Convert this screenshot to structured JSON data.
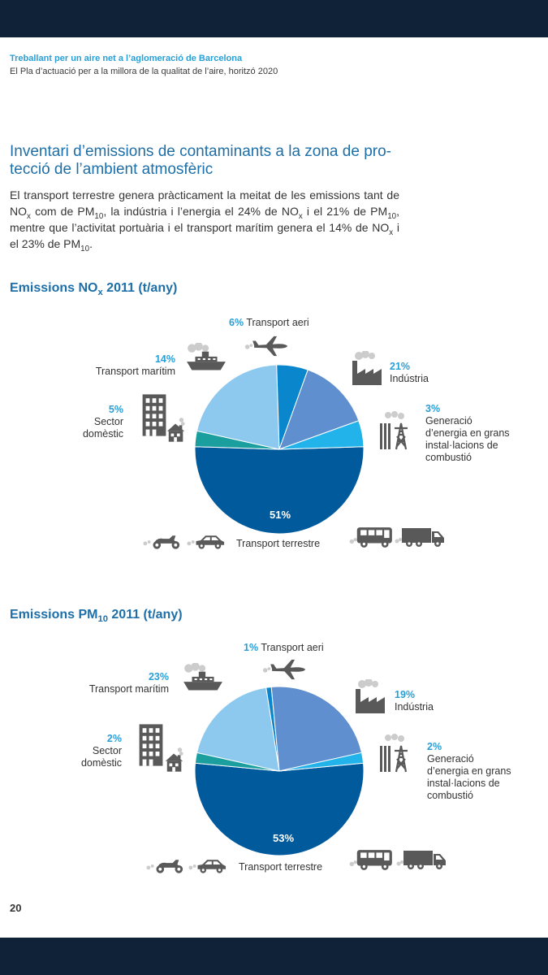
{
  "header": {
    "line1": "Treballant per un aire net a l’aglomeració de Barcelona",
    "line2": "El Pla d’actuació per a la millora de la qualitat de l’aire, horitzó 2020"
  },
  "section": {
    "title": "Inventari d’emissions de contaminants a la zona de pro- tecció de l’ambient atmosfèric",
    "intro": {
      "p1": "El transport terrestre genera pràcticament la meitat de les emissions tant de NO",
      "s1": "x",
      "p2": " com de PM",
      "s2": "10",
      "p3": ", la indústria i l’energia el 24% de NO",
      "s3": "x",
      "p4": " i el 21% de PM",
      "s4": "10",
      "p5": ", mentre que l’activitat portuària i el transport marítim genera el 14% de NO",
      "s5": "x",
      "p6": " i el 23% de PM",
      "s6": "10",
      "p7": "."
    }
  },
  "chart_data": [
    {
      "type": "pie",
      "title": {
        "main": "Emissions NO",
        "sub": "x",
        "rest": "2011 (t/any)"
      },
      "slices": [
        {
          "label": "Transport terrestre",
          "value": 51,
          "pct": "51%",
          "color": "#005a9c"
        },
        {
          "label": "Generació d’energia en grans instal·lacions de combustió",
          "value": 3,
          "pct": "3%",
          "color": "#1a9e9e"
        },
        {
          "label": "Indústria",
          "value": 21,
          "pct": "21%",
          "color": "#8dc8ee"
        },
        {
          "label": "Transport aeri",
          "value": 6,
          "pct": "6%",
          "color": "#0a86cc"
        },
        {
          "label": "Transport marítim",
          "value": 14,
          "pct": "14%",
          "color": "#5f8fcf"
        },
        {
          "label": "Sector domèstic",
          "value": 5,
          "pct": "5%",
          "color": "#22b3ea"
        }
      ]
    },
    {
      "type": "pie",
      "title": {
        "main": "Emissions PM",
        "sub": "10",
        "rest": "2011 (t/any)"
      },
      "slices": [
        {
          "label": "Transport terrestre",
          "value": 53,
          "pct": "53%",
          "color": "#005a9c"
        },
        {
          "label": "Generació d’energia en grans instal·lacions de combustió",
          "value": 2,
          "pct": "2%",
          "color": "#1a9e9e"
        },
        {
          "label": "Indústria",
          "value": 19,
          "pct": "19%",
          "color": "#8dc8ee"
        },
        {
          "label": "Transport aeri",
          "value": 1,
          "pct": "1%",
          "color": "#0a86cc"
        },
        {
          "label": "Transport marítim",
          "value": 23,
          "pct": "23%",
          "color": "#5f8fcf"
        },
        {
          "label": "Sector domèstic",
          "value": 2,
          "pct": "2%",
          "color": "#22b3ea"
        }
      ]
    }
  ],
  "labels": {
    "aeri": "Transport aeri",
    "maritim": "Transport marítim",
    "domestic_1": "Sector",
    "domestic_2": "domèstic",
    "industria": "Indústria",
    "energia_1": "Generació",
    "energia_2": "d’energia en grans",
    "energia_3": "instal·lacions de",
    "energia_4": "combustió",
    "terrestre": "Transport terrestre"
  },
  "icons": [
    "plane-icon",
    "ship-icon",
    "factory-icon",
    "power-tower-icon",
    "buildings-icon",
    "house-icon",
    "motorbike-icon",
    "car-icon",
    "bus-icon",
    "truck-icon"
  ],
  "colors": {
    "accent": "#2a9fd6",
    "title": "#1e6fa8",
    "icon": "#595959",
    "bar": "#0f2237"
  },
  "page": {
    "number": "20"
  }
}
